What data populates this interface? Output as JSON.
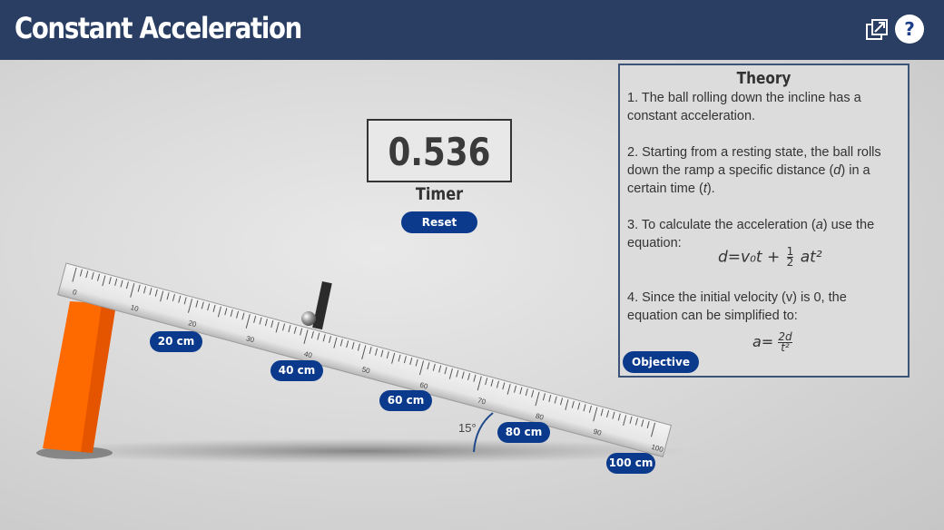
{
  "header": {
    "title": "Constant Acceleration",
    "help_label": "?"
  },
  "timer": {
    "value": "0.536",
    "label": "Timer",
    "reset_label": "Reset"
  },
  "theory": {
    "title": "Theory",
    "p1": "1. The ball rolling down the incline has a constant acceleration.",
    "p2_a": "2. Starting from a resting state, the ball rolls down the ramp a specific distance (",
    "p2_d": "d",
    "p2_b": ") in a certain time (",
    "p2_t": "t",
    "p2_c": ").",
    "p3_a": "3. To calculate the acceleration (",
    "p3_var": "a",
    "p3_b": ") use the equation:",
    "eq1_lhs": "d=v₀t +",
    "eq1_num": "1",
    "eq1_den": "2",
    "eq1_rhs": "at²",
    "p4": "4. Since the initial velocity (v) is 0, the equation can be simplified to:",
    "eq2_lhs": "a=",
    "eq2_num": "2d",
    "eq2_den": "t²"
  },
  "objective_label": "Objective",
  "ramp": {
    "angle_label": "15°",
    "distance_labels": [
      "20 cm",
      "40 cm",
      "60 cm",
      "80 cm",
      "100 cm"
    ],
    "tick_numbers": [
      "0",
      "10",
      "20",
      "30",
      "40",
      "50",
      "60",
      "70",
      "80",
      "90",
      "100"
    ]
  },
  "colors": {
    "header_bg": "#2a3e63",
    "pill": "#0b3a8c",
    "support": "#ff6a00",
    "gate": "#2b2b2b"
  },
  "icons": {
    "popout": "popout-icon",
    "help": "help-icon"
  }
}
